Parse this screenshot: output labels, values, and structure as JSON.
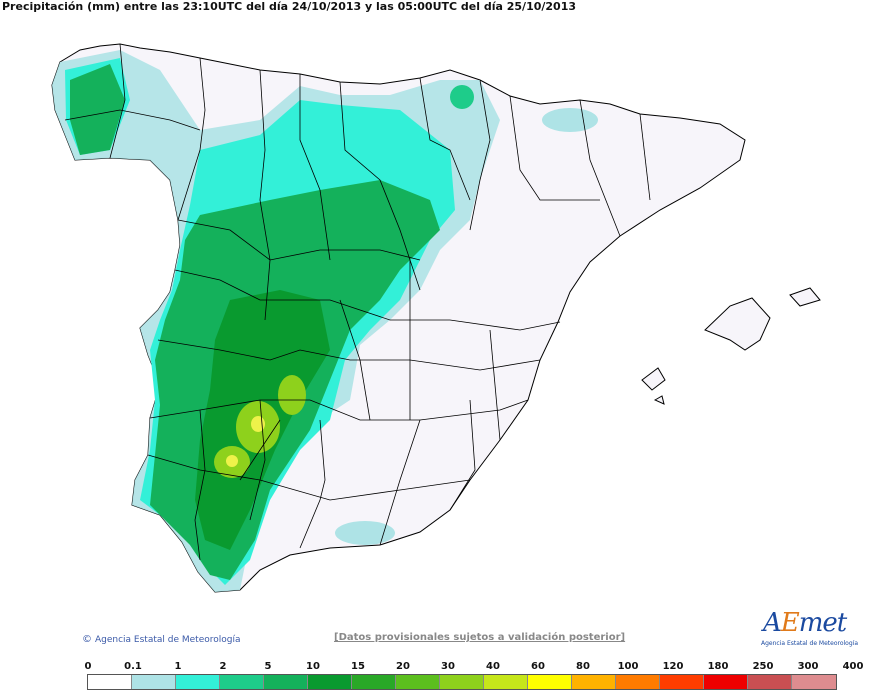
{
  "title": "Precipitación (mm) entre las 23:10UTC del día 24/10/2013 y las 05:00UTC del día 25/10/2013",
  "credit": "Agencia Estatal de Meteorología",
  "disclaimer": "[Datos provisionales sujetos a validación posterior]",
  "logo": {
    "text_a": "A",
    "text_e": "E",
    "text_met": "met",
    "subtitle": "Agencia Estatal de Meteorología"
  },
  "legend": {
    "labels": [
      "0",
      "0.1",
      "1",
      "2",
      "5",
      "10",
      "15",
      "20",
      "30",
      "40",
      "60",
      "80",
      "100",
      "120",
      "180",
      "250",
      "300",
      "400"
    ],
    "colors": [
      "#ffffff",
      "#aee3e6",
      "#33f0d8",
      "#1ecc8a",
      "#14b15b",
      "#099a2f",
      "#29a827",
      "#5cbf1e",
      "#8ed11c",
      "#c6e61a",
      "#ffff00",
      "#ffb200",
      "#ff7b00",
      "#ff3d00",
      "#ee0000",
      "#c94f52",
      "#de8c8f",
      "#f0c4c4"
    ]
  },
  "colors": {
    "land": "#f7f5fa",
    "border": "#000000",
    "light_cyan": "#aee3e6",
    "cyan": "#33f0d8",
    "green_lt": "#1ecc8a",
    "green": "#14b15b",
    "green_dk": "#099a2f",
    "lime": "#8ed11c",
    "yellow": "#eef24a"
  }
}
